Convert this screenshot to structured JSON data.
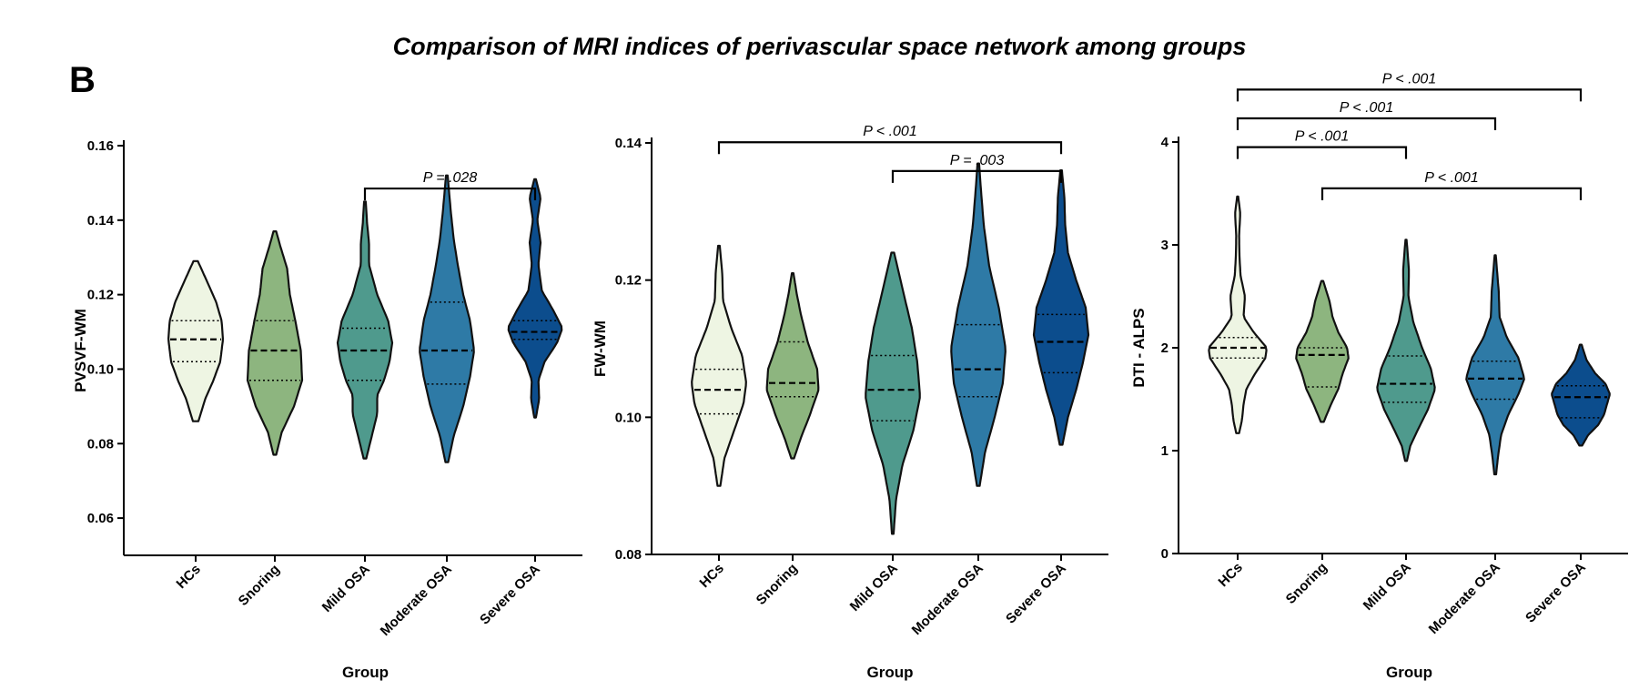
{
  "figure": {
    "title": "Comparison of MRI indices of perivascular space network among groups",
    "panel_letter": "B"
  },
  "chart_data": [
    {
      "type": "violin",
      "xlabel": "Group",
      "ylabel": "PVSVF-WM",
      "ylim": [
        0.05,
        0.16
      ],
      "yticks": [
        0.06,
        0.08,
        0.1,
        0.12,
        0.14,
        0.16
      ],
      "ytick_labels": [
        "0.06",
        "0.08",
        "0.10",
        "0.12",
        "0.14",
        "0.16"
      ],
      "categories": [
        "HCs",
        "Snoring",
        "Mild OSA",
        "Moderate OSA",
        "Severe OSA"
      ],
      "colors": [
        "#eef5e3",
        "#8db57f",
        "#4f9a8d",
        "#2e7aa6",
        "#0c4d8d"
      ],
      "groups": [
        {
          "min": 0.086,
          "max": 0.129,
          "q1": 0.102,
          "median": 0.108,
          "q3": 0.113,
          "density": [
            [
              0.086,
              0.1
            ],
            [
              0.092,
              0.35
            ],
            [
              0.097,
              0.65
            ],
            [
              0.102,
              0.9
            ],
            [
              0.108,
              1.0
            ],
            [
              0.113,
              0.95
            ],
            [
              0.118,
              0.75
            ],
            [
              0.123,
              0.45
            ],
            [
              0.129,
              0.08
            ]
          ]
        },
        {
          "min": 0.077,
          "max": 0.137,
          "q1": 0.097,
          "median": 0.105,
          "q3": 0.113,
          "density": [
            [
              0.077,
              0.05
            ],
            [
              0.083,
              0.25
            ],
            [
              0.09,
              0.7
            ],
            [
              0.097,
              1.0
            ],
            [
              0.105,
              0.95
            ],
            [
              0.113,
              0.75
            ],
            [
              0.12,
              0.55
            ],
            [
              0.127,
              0.45
            ],
            [
              0.133,
              0.2
            ],
            [
              0.137,
              0.05
            ]
          ]
        },
        {
          "min": 0.076,
          "max": 0.145,
          "q1": 0.097,
          "median": 0.105,
          "q3": 0.111,
          "density": [
            [
              0.076,
              0.05
            ],
            [
              0.082,
              0.25
            ],
            [
              0.088,
              0.45
            ],
            [
              0.093,
              0.45
            ],
            [
              0.097,
              0.7
            ],
            [
              0.102,
              0.9
            ],
            [
              0.107,
              1.0
            ],
            [
              0.113,
              0.85
            ],
            [
              0.12,
              0.45
            ],
            [
              0.128,
              0.15
            ],
            [
              0.134,
              0.15
            ],
            [
              0.139,
              0.08
            ],
            [
              0.145,
              0.03
            ]
          ]
        },
        {
          "min": 0.075,
          "max": 0.152,
          "q1": 0.096,
          "median": 0.105,
          "q3": 0.118,
          "density": [
            [
              0.075,
              0.05
            ],
            [
              0.082,
              0.25
            ],
            [
              0.09,
              0.6
            ],
            [
              0.098,
              0.85
            ],
            [
              0.105,
              1.0
            ],
            [
              0.113,
              0.85
            ],
            [
              0.12,
              0.6
            ],
            [
              0.128,
              0.4
            ],
            [
              0.135,
              0.25
            ],
            [
              0.142,
              0.15
            ],
            [
              0.152,
              0.03
            ]
          ]
        },
        {
          "min": 0.087,
          "max": 0.151,
          "q1": 0.108,
          "median": 0.11,
          "q3": 0.113,
          "density": [
            [
              0.087,
              0.03
            ],
            [
              0.092,
              0.15
            ],
            [
              0.097,
              0.12
            ],
            [
              0.102,
              0.35
            ],
            [
              0.107,
              0.8
            ],
            [
              0.111,
              1.0
            ],
            [
              0.116,
              0.65
            ],
            [
              0.121,
              0.25
            ],
            [
              0.128,
              0.12
            ],
            [
              0.134,
              0.2
            ],
            [
              0.14,
              0.08
            ],
            [
              0.146,
              0.2
            ],
            [
              0.151,
              0.03
            ]
          ]
        }
      ],
      "brackets": [
        {
          "from": 2,
          "to": 4,
          "label": "P = .028",
          "level": 0.1485
        }
      ]
    },
    {
      "type": "violin",
      "xlabel": "Group",
      "ylabel": "FW-WM",
      "ylim": [
        0.08,
        0.14
      ],
      "yticks": [
        0.08,
        0.1,
        0.12,
        0.14
      ],
      "ytick_labels": [
        "0.08",
        "0.10",
        "0.12",
        "0.14"
      ],
      "categories": [
        "HCs",
        "Snoring",
        "Mild OSA",
        "Moderate OSA",
        "Severe OSA"
      ],
      "colors": [
        "#eef5e3",
        "#8db57f",
        "#4f9a8d",
        "#2e7aa6",
        "#0c4d8d"
      ],
      "groups": [
        {
          "min": 0.09,
          "max": 0.125,
          "q1": 0.1005,
          "median": 0.104,
          "q3": 0.107,
          "density": [
            [
              0.09,
              0.05
            ],
            [
              0.094,
              0.2
            ],
            [
              0.098,
              0.55
            ],
            [
              0.102,
              0.9
            ],
            [
              0.105,
              1.0
            ],
            [
              0.109,
              0.85
            ],
            [
              0.113,
              0.45
            ],
            [
              0.117,
              0.15
            ],
            [
              0.121,
              0.12
            ],
            [
              0.125,
              0.03
            ]
          ]
        },
        {
          "min": 0.094,
          "max": 0.121,
          "q1": 0.103,
          "median": 0.105,
          "q3": 0.111,
          "density": [
            [
              0.094,
              0.05
            ],
            [
              0.097,
              0.3
            ],
            [
              0.1,
              0.6
            ],
            [
              0.104,
              0.95
            ],
            [
              0.107,
              0.9
            ],
            [
              0.111,
              0.55
            ],
            [
              0.115,
              0.3
            ],
            [
              0.118,
              0.15
            ],
            [
              0.121,
              0.03
            ]
          ]
        },
        {
          "min": 0.083,
          "max": 0.124,
          "q1": 0.0995,
          "median": 0.104,
          "q3": 0.109,
          "density": [
            [
              0.083,
              0.03
            ],
            [
              0.088,
              0.12
            ],
            [
              0.093,
              0.35
            ],
            [
              0.098,
              0.75
            ],
            [
              0.103,
              1.0
            ],
            [
              0.108,
              0.9
            ],
            [
              0.113,
              0.7
            ],
            [
              0.118,
              0.4
            ],
            [
              0.124,
              0.05
            ]
          ]
        },
        {
          "min": 0.09,
          "max": 0.137,
          "q1": 0.103,
          "median": 0.107,
          "q3": 0.1135,
          "density": [
            [
              0.09,
              0.05
            ],
            [
              0.095,
              0.25
            ],
            [
              0.1,
              0.6
            ],
            [
              0.105,
              0.9
            ],
            [
              0.11,
              1.0
            ],
            [
              0.116,
              0.75
            ],
            [
              0.122,
              0.4
            ],
            [
              0.128,
              0.2
            ],
            [
              0.133,
              0.1
            ],
            [
              0.137,
              0.03
            ]
          ]
        },
        {
          "min": 0.096,
          "max": 0.136,
          "q1": 0.1065,
          "median": 0.111,
          "q3": 0.115,
          "density": [
            [
              0.096,
              0.05
            ],
            [
              0.1,
              0.25
            ],
            [
              0.104,
              0.55
            ],
            [
              0.108,
              0.8
            ],
            [
              0.112,
              1.0
            ],
            [
              0.116,
              0.9
            ],
            [
              0.12,
              0.55
            ],
            [
              0.124,
              0.25
            ],
            [
              0.128,
              0.15
            ],
            [
              0.132,
              0.12
            ],
            [
              0.136,
              0.03
            ]
          ]
        }
      ],
      "brackets": [
        {
          "from": 2,
          "to": 4,
          "label": "P = .003",
          "level": 0.1359
        },
        {
          "from": 0,
          "to": 4,
          "label": "P < .001",
          "level": 0.1401
        }
      ]
    },
    {
      "type": "violin",
      "xlabel": "Group",
      "ylabel": "DTI - ALPS",
      "ylim": [
        0,
        4
      ],
      "yticks": [
        0,
        1,
        2,
        3,
        4
      ],
      "ytick_labels": [
        "0",
        "1",
        "2",
        "3",
        "4"
      ],
      "categories": [
        "HCs",
        "Snoring",
        "Mild OSA",
        "Moderate OSA",
        "Severe OSA"
      ],
      "colors": [
        "#eef5e3",
        "#8db57f",
        "#4f9a8d",
        "#2e7aa6",
        "#0c4d8d"
      ],
      "groups": [
        {
          "min": 1.17,
          "max": 3.47,
          "q1": 1.9,
          "median": 2.0,
          "q3": 2.1,
          "density": [
            [
              1.17,
              0.05
            ],
            [
              1.3,
              0.15
            ],
            [
              1.45,
              0.2
            ],
            [
              1.6,
              0.3
            ],
            [
              1.75,
              0.6
            ],
            [
              1.9,
              0.95
            ],
            [
              2.0,
              1.0
            ],
            [
              2.15,
              0.55
            ],
            [
              2.3,
              0.2
            ],
            [
              2.5,
              0.25
            ],
            [
              2.7,
              0.1
            ],
            [
              2.9,
              0.06
            ],
            [
              3.1,
              0.05
            ],
            [
              3.3,
              0.09
            ],
            [
              3.47,
              0.02
            ]
          ]
        },
        {
          "min": 1.28,
          "max": 2.65,
          "q1": 1.62,
          "median": 1.93,
          "q3": 2.0,
          "density": [
            [
              1.28,
              0.05
            ],
            [
              1.45,
              0.3
            ],
            [
              1.6,
              0.55
            ],
            [
              1.75,
              0.7
            ],
            [
              1.9,
              0.9
            ],
            [
              2.0,
              0.85
            ],
            [
              2.15,
              0.55
            ],
            [
              2.3,
              0.35
            ],
            [
              2.45,
              0.25
            ],
            [
              2.65,
              0.03
            ]
          ]
        },
        {
          "min": 0.9,
          "max": 3.05,
          "q1": 1.47,
          "median": 1.65,
          "q3": 1.92,
          "density": [
            [
              0.9,
              0.03
            ],
            [
              1.05,
              0.15
            ],
            [
              1.2,
              0.4
            ],
            [
              1.4,
              0.75
            ],
            [
              1.6,
              1.0
            ],
            [
              1.8,
              0.85
            ],
            [
              2.0,
              0.55
            ],
            [
              2.25,
              0.25
            ],
            [
              2.5,
              0.08
            ],
            [
              2.75,
              0.1
            ],
            [
              3.05,
              0.02
            ]
          ]
        },
        {
          "min": 0.77,
          "max": 2.9,
          "q1": 1.5,
          "median": 1.7,
          "q3": 1.87,
          "density": [
            [
              0.77,
              0.03
            ],
            [
              0.95,
              0.1
            ],
            [
              1.15,
              0.2
            ],
            [
              1.35,
              0.45
            ],
            [
              1.55,
              0.8
            ],
            [
              1.7,
              1.0
            ],
            [
              1.9,
              0.8
            ],
            [
              2.1,
              0.4
            ],
            [
              2.3,
              0.15
            ],
            [
              2.55,
              0.12
            ],
            [
              2.9,
              0.02
            ]
          ]
        },
        {
          "min": 1.05,
          "max": 2.03,
          "q1": 1.32,
          "median": 1.52,
          "q3": 1.63,
          "density": [
            [
              1.05,
              0.05
            ],
            [
              1.15,
              0.25
            ],
            [
              1.25,
              0.6
            ],
            [
              1.35,
              0.8
            ],
            [
              1.45,
              0.9
            ],
            [
              1.55,
              1.0
            ],
            [
              1.65,
              0.85
            ],
            [
              1.75,
              0.5
            ],
            [
              1.88,
              0.2
            ],
            [
              2.03,
              0.03
            ]
          ]
        }
      ],
      "brackets": [
        {
          "from": 1,
          "to": 4,
          "label": "P < .001",
          "level": 3.55
        },
        {
          "from": 0,
          "to": 2,
          "label": "P < .001",
          "level": 3.95
        },
        {
          "from": 0,
          "to": 3,
          "label": "P < .001",
          "level": 4.23
        },
        {
          "from": 0,
          "to": 4,
          "label": "P < .001",
          "level": 4.51
        }
      ]
    }
  ]
}
